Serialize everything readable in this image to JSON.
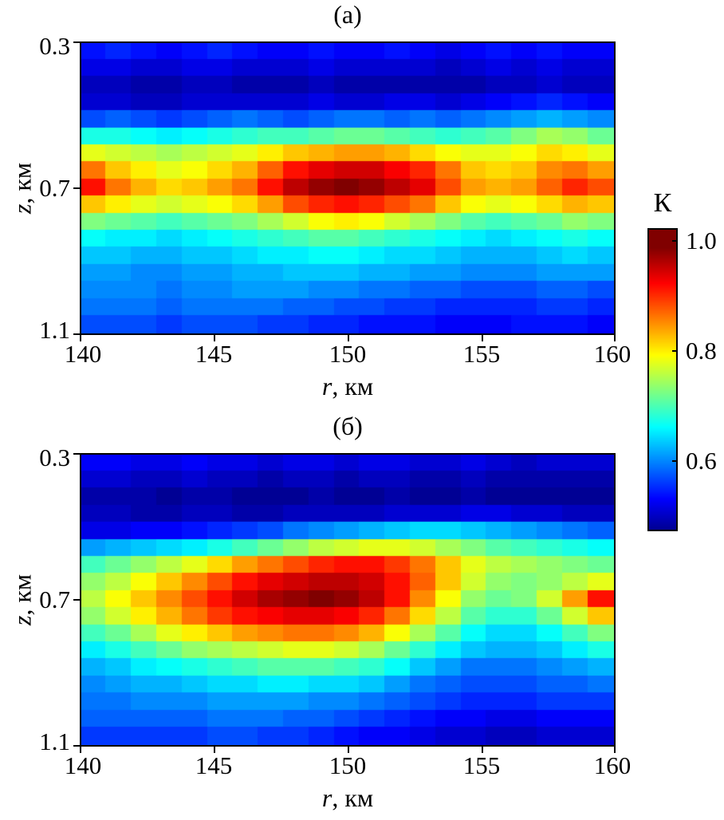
{
  "figure": {
    "panel_a_title": "(а)",
    "panel_b_title": "(б)",
    "y_axis": {
      "var": "z",
      "unit": ", км",
      "ticks": [
        "0.3",
        "0.7",
        "1.1"
      ]
    },
    "x_axis": {
      "var": "r",
      "unit": ", км",
      "ticks": [
        "140",
        "145",
        "150",
        "155",
        "160"
      ]
    },
    "colorbar": {
      "label": "К",
      "ticks": [
        "1.0",
        "0.8",
        "0.6"
      ]
    }
  },
  "chart_data": {
    "type": "heatmap",
    "colormap": "jet",
    "value_range": [
      0.5,
      1.0
    ],
    "x_range": [
      140,
      160
    ],
    "x_label": "r, км",
    "y_range": [
      0.3,
      1.1
    ],
    "y_label": "z, км",
    "y_direction": "increasing downward",
    "colorbar": {
      "label": "К",
      "tick_values": [
        1.0,
        0.8,
        0.6
      ],
      "range": [
        0.51,
        1.03
      ]
    },
    "panels": [
      {
        "title": "(а)",
        "description": "Focusing factor K: high-K band near z=0.7 km with maximum near r=150 km",
        "values": [
          [
            0.57,
            0.58,
            0.57,
            0.56,
            0.57,
            0.58,
            0.57,
            0.56,
            0.56,
            0.57,
            0.56,
            0.56,
            0.57,
            0.56,
            0.55,
            0.56,
            0.57,
            0.56,
            0.57,
            0.56,
            0.56
          ],
          [
            0.55,
            0.55,
            0.54,
            0.54,
            0.55,
            0.55,
            0.54,
            0.54,
            0.54,
            0.55,
            0.54,
            0.54,
            0.54,
            0.54,
            0.53,
            0.54,
            0.55,
            0.54,
            0.55,
            0.54,
            0.54
          ],
          [
            0.53,
            0.53,
            0.52,
            0.52,
            0.53,
            0.53,
            0.52,
            0.52,
            0.52,
            0.53,
            0.52,
            0.52,
            0.52,
            0.52,
            0.52,
            0.52,
            0.53,
            0.53,
            0.54,
            0.53,
            0.53
          ],
          [
            0.54,
            0.54,
            0.53,
            0.53,
            0.54,
            0.54,
            0.54,
            0.54,
            0.54,
            0.55,
            0.54,
            0.54,
            0.55,
            0.55,
            0.54,
            0.55,
            0.56,
            0.57,
            0.58,
            0.57,
            0.56
          ],
          [
            0.6,
            0.61,
            0.6,
            0.59,
            0.6,
            0.61,
            0.62,
            0.61,
            0.6,
            0.61,
            0.62,
            0.62,
            0.61,
            0.62,
            0.61,
            0.62,
            0.63,
            0.64,
            0.65,
            0.64,
            0.63
          ],
          [
            0.7,
            0.7,
            0.69,
            0.68,
            0.69,
            0.7,
            0.71,
            0.72,
            0.72,
            0.73,
            0.74,
            0.74,
            0.73,
            0.72,
            0.71,
            0.72,
            0.73,
            0.75,
            0.77,
            0.76,
            0.74
          ],
          [
            0.8,
            0.79,
            0.78,
            0.77,
            0.78,
            0.79,
            0.8,
            0.82,
            0.84,
            0.85,
            0.86,
            0.86,
            0.85,
            0.83,
            0.81,
            0.8,
            0.8,
            0.81,
            0.83,
            0.82,
            0.8
          ],
          [
            0.88,
            0.84,
            0.82,
            0.8,
            0.81,
            0.83,
            0.85,
            0.89,
            0.93,
            0.95,
            0.96,
            0.96,
            0.94,
            0.92,
            0.88,
            0.84,
            0.83,
            0.84,
            0.87,
            0.88,
            0.86
          ],
          [
            0.93,
            0.88,
            0.85,
            0.83,
            0.84,
            0.86,
            0.88,
            0.93,
            0.97,
            0.99,
            1.0,
            0.99,
            0.97,
            0.95,
            0.9,
            0.86,
            0.85,
            0.86,
            0.89,
            0.92,
            0.9
          ],
          [
            0.84,
            0.82,
            0.8,
            0.79,
            0.8,
            0.81,
            0.83,
            0.86,
            0.9,
            0.92,
            0.93,
            0.92,
            0.9,
            0.88,
            0.84,
            0.81,
            0.8,
            0.81,
            0.83,
            0.85,
            0.84
          ],
          [
            0.75,
            0.74,
            0.73,
            0.72,
            0.73,
            0.74,
            0.75,
            0.77,
            0.79,
            0.81,
            0.82,
            0.81,
            0.79,
            0.77,
            0.75,
            0.73,
            0.72,
            0.73,
            0.74,
            0.76,
            0.75
          ],
          [
            0.69,
            0.68,
            0.68,
            0.67,
            0.68,
            0.69,
            0.7,
            0.71,
            0.72,
            0.73,
            0.73,
            0.72,
            0.71,
            0.7,
            0.69,
            0.68,
            0.67,
            0.68,
            0.69,
            0.7,
            0.69
          ],
          [
            0.66,
            0.66,
            0.65,
            0.65,
            0.66,
            0.66,
            0.67,
            0.68,
            0.68,
            0.69,
            0.69,
            0.68,
            0.67,
            0.67,
            0.66,
            0.65,
            0.65,
            0.65,
            0.66,
            0.67,
            0.66
          ],
          [
            0.64,
            0.64,
            0.63,
            0.63,
            0.64,
            0.64,
            0.65,
            0.65,
            0.66,
            0.66,
            0.66,
            0.65,
            0.65,
            0.64,
            0.64,
            0.63,
            0.63,
            0.63,
            0.64,
            0.64,
            0.64
          ],
          [
            0.63,
            0.63,
            0.63,
            0.62,
            0.63,
            0.63,
            0.64,
            0.64,
            0.64,
            0.63,
            0.63,
            0.62,
            0.62,
            0.61,
            0.61,
            0.6,
            0.6,
            0.6,
            0.61,
            0.61,
            0.6
          ],
          [
            0.62,
            0.62,
            0.62,
            0.61,
            0.62,
            0.62,
            0.62,
            0.62,
            0.61,
            0.61,
            0.6,
            0.6,
            0.59,
            0.59,
            0.58,
            0.58,
            0.58,
            0.58,
            0.59,
            0.59,
            0.58
          ],
          [
            0.6,
            0.6,
            0.6,
            0.59,
            0.6,
            0.6,
            0.6,
            0.59,
            0.59,
            0.58,
            0.58,
            0.57,
            0.57,
            0.57,
            0.56,
            0.56,
            0.56,
            0.57,
            0.57,
            0.57,
            0.56
          ]
        ]
      },
      {
        "title": "(б)",
        "description": "Focusing factor K: broad high-K lobe centered near r=148-151 km, z=0.65-0.75 km, secondary maximum at right edge near r=160 km",
        "values": [
          [
            0.56,
            0.56,
            0.55,
            0.55,
            0.56,
            0.55,
            0.55,
            0.54,
            0.55,
            0.55,
            0.54,
            0.55,
            0.55,
            0.54,
            0.54,
            0.55,
            0.54,
            0.53,
            0.54,
            0.54,
            0.54
          ],
          [
            0.54,
            0.54,
            0.53,
            0.53,
            0.54,
            0.53,
            0.53,
            0.52,
            0.53,
            0.53,
            0.52,
            0.53,
            0.53,
            0.52,
            0.52,
            0.53,
            0.52,
            0.52,
            0.52,
            0.52,
            0.52
          ],
          [
            0.52,
            0.52,
            0.52,
            0.51,
            0.52,
            0.52,
            0.51,
            0.51,
            0.51,
            0.52,
            0.51,
            0.51,
            0.52,
            0.51,
            0.51,
            0.52,
            0.51,
            0.51,
            0.51,
            0.51,
            0.51
          ],
          [
            0.53,
            0.53,
            0.52,
            0.52,
            0.53,
            0.53,
            0.52,
            0.52,
            0.53,
            0.53,
            0.53,
            0.53,
            0.54,
            0.54,
            0.54,
            0.55,
            0.55,
            0.54,
            0.54,
            0.53,
            0.53
          ],
          [
            0.55,
            0.55,
            0.56,
            0.56,
            0.57,
            0.58,
            0.59,
            0.6,
            0.62,
            0.63,
            0.64,
            0.65,
            0.66,
            0.67,
            0.67,
            0.66,
            0.65,
            0.64,
            0.63,
            0.62,
            0.61
          ],
          [
            0.64,
            0.65,
            0.66,
            0.67,
            0.68,
            0.7,
            0.72,
            0.74,
            0.76,
            0.78,
            0.79,
            0.8,
            0.8,
            0.79,
            0.77,
            0.75,
            0.73,
            0.72,
            0.71,
            0.7,
            0.69
          ],
          [
            0.72,
            0.74,
            0.76,
            0.78,
            0.8,
            0.83,
            0.86,
            0.88,
            0.9,
            0.92,
            0.93,
            0.93,
            0.91,
            0.88,
            0.84,
            0.8,
            0.78,
            0.77,
            0.76,
            0.75,
            0.74
          ],
          [
            0.76,
            0.78,
            0.81,
            0.84,
            0.87,
            0.9,
            0.93,
            0.95,
            0.96,
            0.97,
            0.97,
            0.96,
            0.93,
            0.89,
            0.84,
            0.79,
            0.76,
            0.75,
            0.76,
            0.78,
            0.8
          ],
          [
            0.78,
            0.81,
            0.84,
            0.87,
            0.9,
            0.93,
            0.96,
            0.98,
            0.99,
            1.0,
            0.99,
            0.97,
            0.93,
            0.87,
            0.81,
            0.76,
            0.74,
            0.75,
            0.79,
            0.86,
            0.93
          ],
          [
            0.76,
            0.79,
            0.82,
            0.85,
            0.88,
            0.91,
            0.93,
            0.94,
            0.95,
            0.95,
            0.94,
            0.92,
            0.88,
            0.83,
            0.78,
            0.73,
            0.71,
            0.71,
            0.74,
            0.79,
            0.84
          ],
          [
            0.72,
            0.74,
            0.77,
            0.8,
            0.82,
            0.84,
            0.86,
            0.87,
            0.88,
            0.88,
            0.87,
            0.85,
            0.81,
            0.77,
            0.73,
            0.69,
            0.67,
            0.67,
            0.69,
            0.72,
            0.75
          ],
          [
            0.68,
            0.7,
            0.72,
            0.74,
            0.76,
            0.77,
            0.78,
            0.79,
            0.8,
            0.8,
            0.79,
            0.77,
            0.74,
            0.71,
            0.68,
            0.66,
            0.65,
            0.65,
            0.66,
            0.68,
            0.7
          ],
          [
            0.65,
            0.66,
            0.68,
            0.69,
            0.7,
            0.71,
            0.72,
            0.73,
            0.73,
            0.73,
            0.72,
            0.71,
            0.69,
            0.66,
            0.64,
            0.62,
            0.62,
            0.62,
            0.63,
            0.64,
            0.65
          ],
          [
            0.63,
            0.64,
            0.65,
            0.65,
            0.66,
            0.67,
            0.67,
            0.68,
            0.68,
            0.67,
            0.67,
            0.66,
            0.64,
            0.62,
            0.61,
            0.6,
            0.6,
            0.6,
            0.61,
            0.61,
            0.62
          ],
          [
            0.62,
            0.62,
            0.63,
            0.63,
            0.63,
            0.64,
            0.64,
            0.64,
            0.64,
            0.63,
            0.63,
            0.62,
            0.61,
            0.6,
            0.59,
            0.58,
            0.58,
            0.58,
            0.59,
            0.59,
            0.59
          ],
          [
            0.61,
            0.61,
            0.61,
            0.61,
            0.61,
            0.62,
            0.62,
            0.62,
            0.61,
            0.61,
            0.6,
            0.59,
            0.58,
            0.57,
            0.56,
            0.56,
            0.55,
            0.55,
            0.56,
            0.56,
            0.56
          ],
          [
            0.59,
            0.59,
            0.59,
            0.59,
            0.59,
            0.6,
            0.6,
            0.59,
            0.59,
            0.58,
            0.57,
            0.56,
            0.56,
            0.55,
            0.54,
            0.54,
            0.53,
            0.53,
            0.54,
            0.54,
            0.54
          ]
        ]
      }
    ]
  }
}
